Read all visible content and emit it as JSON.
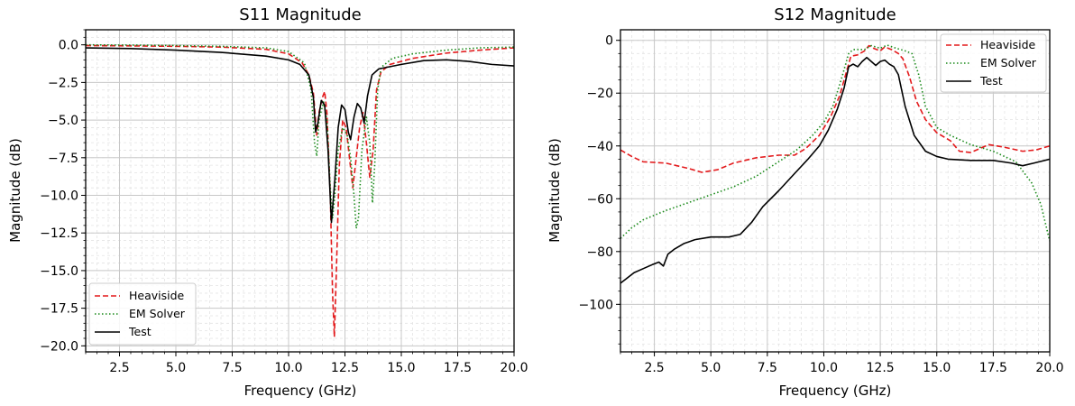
{
  "chart_data": [
    {
      "id": "s11",
      "type": "line",
      "title": "S11 Magnitude",
      "xlabel": "Frequency (GHz)",
      "ylabel": "Magnitude (dB)",
      "xlim": [
        1,
        20
      ],
      "ylim": [
        -20.4,
        1.0
      ],
      "xticks": [
        2.5,
        5.0,
        7.5,
        10.0,
        12.5,
        15.0,
        17.5,
        20.0
      ],
      "xtick_labels": [
        "2.5",
        "5.0",
        "7.5",
        "10.0",
        "12.5",
        "15.0",
        "17.5",
        "20.0"
      ],
      "yticks": [
        0,
        -2.5,
        -5.0,
        -7.5,
        -10.0,
        -12.5,
        -15.0,
        -17.5,
        -20.0
      ],
      "ytick_labels": [
        "0.0",
        "−2.5",
        "−5.0",
        "−7.5",
        "−10.0",
        "−12.5",
        "−15.0",
        "−17.5",
        "−20.0"
      ],
      "grid": true,
      "legend_position": "lower-left",
      "series": [
        {
          "name": "Heaviside",
          "color": "#e31a1c",
          "dash": "dashed",
          "points": [
            [
              1,
              -0.05
            ],
            [
              3,
              -0.07
            ],
            [
              5,
              -0.1
            ],
            [
              7,
              -0.15
            ],
            [
              9,
              -0.3
            ],
            [
              10,
              -0.6
            ],
            [
              10.6,
              -1.2
            ],
            [
              10.9,
              -2.0
            ],
            [
              11.1,
              -3.2
            ],
            [
              11.25,
              -6.0
            ],
            [
              11.35,
              -4.5
            ],
            [
              11.5,
              -3.5
            ],
            [
              11.6,
              -3.1
            ],
            [
              11.7,
              -4.5
            ],
            [
              11.85,
              -10.0
            ],
            [
              11.95,
              -16.5
            ],
            [
              12.03,
              -19.4
            ],
            [
              12.12,
              -15.0
            ],
            [
              12.25,
              -8.0
            ],
            [
              12.4,
              -5.0
            ],
            [
              12.55,
              -5.5
            ],
            [
              12.7,
              -7.5
            ],
            [
              12.85,
              -9.5
            ],
            [
              13.0,
              -7.5
            ],
            [
              13.15,
              -5.5
            ],
            [
              13.3,
              -4.5
            ],
            [
              13.45,
              -6.5
            ],
            [
              13.6,
              -8.8
            ],
            [
              13.75,
              -7.0
            ],
            [
              13.9,
              -3.0
            ],
            [
              14.1,
              -1.8
            ],
            [
              14.5,
              -1.3
            ],
            [
              15.5,
              -0.9
            ],
            [
              17,
              -0.55
            ],
            [
              18.5,
              -0.35
            ],
            [
              20,
              -0.2
            ]
          ]
        },
        {
          "name": "EM Solver",
          "color": "#1a8a1a",
          "dash": "dotted",
          "points": [
            [
              1,
              0.0
            ],
            [
              3,
              -0.02
            ],
            [
              5,
              -0.05
            ],
            [
              7,
              -0.1
            ],
            [
              9,
              -0.2
            ],
            [
              10,
              -0.45
            ],
            [
              10.7,
              -1.2
            ],
            [
              11.0,
              -3.0
            ],
            [
              11.15,
              -6.5
            ],
            [
              11.25,
              -7.4
            ],
            [
              11.35,
              -5.0
            ],
            [
              11.55,
              -3.8
            ],
            [
              11.7,
              -5.0
            ],
            [
              11.85,
              -9.5
            ],
            [
              11.95,
              -11.5
            ],
            [
              12.05,
              -10.0
            ],
            [
              12.2,
              -7.0
            ],
            [
              12.4,
              -5.5
            ],
            [
              12.6,
              -6.0
            ],
            [
              12.75,
              -7.5
            ],
            [
              12.9,
              -10.0
            ],
            [
              13.0,
              -12.2
            ],
            [
              13.1,
              -11.5
            ],
            [
              13.25,
              -7.0
            ],
            [
              13.45,
              -4.8
            ],
            [
              13.6,
              -6.5
            ],
            [
              13.72,
              -10.5
            ],
            [
              13.82,
              -8.0
            ],
            [
              13.95,
              -3.0
            ],
            [
              14.1,
              -1.5
            ],
            [
              14.6,
              -0.9
            ],
            [
              15.5,
              -0.6
            ],
            [
              17,
              -0.35
            ],
            [
              18.5,
              -0.2
            ],
            [
              20,
              -0.15
            ]
          ]
        },
        {
          "name": "Test",
          "color": "#000000",
          "dash": "solid",
          "points": [
            [
              1,
              -0.2
            ],
            [
              3,
              -0.25
            ],
            [
              5,
              -0.35
            ],
            [
              7,
              -0.5
            ],
            [
              9,
              -0.75
            ],
            [
              10,
              -1.0
            ],
            [
              10.5,
              -1.3
            ],
            [
              10.9,
              -2.0
            ],
            [
              11.1,
              -3.5
            ],
            [
              11.2,
              -5.8
            ],
            [
              11.3,
              -5.2
            ],
            [
              11.45,
              -3.7
            ],
            [
              11.6,
              -4.0
            ],
            [
              11.75,
              -7.0
            ],
            [
              11.9,
              -11.8
            ],
            [
              12.05,
              -9.0
            ],
            [
              12.2,
              -5.5
            ],
            [
              12.35,
              -4.0
            ],
            [
              12.5,
              -4.3
            ],
            [
              12.65,
              -5.8
            ],
            [
              12.75,
              -6.3
            ],
            [
              12.9,
              -4.8
            ],
            [
              13.05,
              -3.9
            ],
            [
              13.2,
              -4.2
            ],
            [
              13.35,
              -5.2
            ],
            [
              13.5,
              -3.4
            ],
            [
              13.7,
              -2.0
            ],
            [
              14,
              -1.6
            ],
            [
              15,
              -1.3
            ],
            [
              16,
              -1.05
            ],
            [
              17,
              -1.0
            ],
            [
              18,
              -1.1
            ],
            [
              19,
              -1.3
            ],
            [
              20,
              -1.4
            ]
          ]
        }
      ]
    },
    {
      "id": "s12",
      "type": "line",
      "title": "S12 Magnitude",
      "xlabel": "Frequency (GHz)",
      "ylabel": "Magnitude (dB)",
      "xlim": [
        1,
        20
      ],
      "ylim": [
        -118,
        4
      ],
      "xticks": [
        2.5,
        5.0,
        7.5,
        10.0,
        12.5,
        15.0,
        17.5,
        20.0
      ],
      "xtick_labels": [
        "2.5",
        "5.0",
        "7.5",
        "10.0",
        "12.5",
        "15.0",
        "17.5",
        "20.0"
      ],
      "yticks": [
        0,
        -20,
        -40,
        -60,
        -80,
        -100
      ],
      "ytick_labels": [
        "0",
        "−20",
        "−40",
        "−60",
        "−80",
        "−100"
      ],
      "grid": true,
      "legend_position": "upper-right",
      "series": [
        {
          "name": "Heaviside",
          "color": "#e31a1c",
          "dash": "dashed",
          "points": [
            [
              1,
              -41.5
            ],
            [
              1.5,
              -44
            ],
            [
              2,
              -46
            ],
            [
              3,
              -46.5
            ],
            [
              4,
              -48.5
            ],
            [
              4.6,
              -50
            ],
            [
              5.3,
              -49
            ],
            [
              6,
              -46.5
            ],
            [
              7,
              -44.5
            ],
            [
              8,
              -43.5
            ],
            [
              8.7,
              -43.5
            ],
            [
              9.2,
              -41
            ],
            [
              9.8,
              -36
            ],
            [
              10.3,
              -29
            ],
            [
              10.7,
              -21
            ],
            [
              11,
              -12
            ],
            [
              11.2,
              -6
            ],
            [
              11.5,
              -5.5
            ],
            [
              11.8,
              -4
            ],
            [
              12.0,
              -2
            ],
            [
              12.2,
              -3
            ],
            [
              12.5,
              -4
            ],
            [
              12.7,
              -2.5
            ],
            [
              13.0,
              -3.5
            ],
            [
              13.3,
              -5
            ],
            [
              13.5,
              -7
            ],
            [
              13.8,
              -14
            ],
            [
              14.1,
              -23
            ],
            [
              14.5,
              -30
            ],
            [
              15,
              -35
            ],
            [
              15.6,
              -38
            ],
            [
              16,
              -42
            ],
            [
              16.5,
              -42.5
            ],
            [
              17.3,
              -39.5
            ],
            [
              18,
              -40.5
            ],
            [
              18.8,
              -42
            ],
            [
              19.4,
              -41.5
            ],
            [
              20,
              -40
            ]
          ]
        },
        {
          "name": "EM Solver",
          "color": "#1a8a1a",
          "dash": "dotted",
          "points": [
            [
              1,
              -75
            ],
            [
              1.5,
              -71
            ],
            [
              2,
              -68
            ],
            [
              3,
              -64.5
            ],
            [
              4,
              -61.5
            ],
            [
              5,
              -58.5
            ],
            [
              6,
              -55.5
            ],
            [
              7,
              -51.5
            ],
            [
              8,
              -46
            ],
            [
              8.8,
              -41.5
            ],
            [
              9.5,
              -36
            ],
            [
              10,
              -31
            ],
            [
              10.4,
              -25
            ],
            [
              10.8,
              -14
            ],
            [
              11.1,
              -5
            ],
            [
              11.3,
              -3.5
            ],
            [
              11.8,
              -3.5
            ],
            [
              12.1,
              -2.0
            ],
            [
              12.5,
              -3.0
            ],
            [
              12.8,
              -1.8
            ],
            [
              13.2,
              -3
            ],
            [
              13.6,
              -4
            ],
            [
              13.9,
              -5
            ],
            [
              14.2,
              -13
            ],
            [
              14.5,
              -25
            ],
            [
              15,
              -33
            ],
            [
              15.6,
              -36
            ],
            [
              16.5,
              -39.5
            ],
            [
              17.5,
              -42
            ],
            [
              18.5,
              -46
            ],
            [
              19.2,
              -54
            ],
            [
              19.6,
              -62
            ],
            [
              20,
              -76
            ]
          ]
        },
        {
          "name": "Test",
          "color": "#000000",
          "dash": "solid",
          "points": [
            [
              1,
              -92
            ],
            [
              1.3,
              -90
            ],
            [
              1.6,
              -88
            ],
            [
              2,
              -86.5
            ],
            [
              2.4,
              -85
            ],
            [
              2.7,
              -84
            ],
            [
              2.9,
              -85.5
            ],
            [
              3.1,
              -81
            ],
            [
              3.4,
              -79
            ],
            [
              3.8,
              -77
            ],
            [
              4.3,
              -75.5
            ],
            [
              5,
              -74.5
            ],
            [
              5.8,
              -74.5
            ],
            [
              6.3,
              -73.5
            ],
            [
              6.8,
              -69
            ],
            [
              7.3,
              -63
            ],
            [
              8,
              -57
            ],
            [
              8.7,
              -50.5
            ],
            [
              9.3,
              -45
            ],
            [
              9.8,
              -40
            ],
            [
              10.2,
              -34
            ],
            [
              10.6,
              -26
            ],
            [
              10.9,
              -18
            ],
            [
              11.1,
              -10
            ],
            [
              11.3,
              -9
            ],
            [
              11.5,
              -10
            ],
            [
              11.7,
              -8
            ],
            [
              11.9,
              -6.5
            ],
            [
              12.1,
              -8
            ],
            [
              12.3,
              -9.5
            ],
            [
              12.5,
              -8
            ],
            [
              12.7,
              -7.5
            ],
            [
              12.9,
              -9
            ],
            [
              13.1,
              -10
            ],
            [
              13.3,
              -13
            ],
            [
              13.6,
              -25
            ],
            [
              14,
              -36
            ],
            [
              14.5,
              -42
            ],
            [
              15,
              -44
            ],
            [
              15.5,
              -45
            ],
            [
              16.5,
              -45.5
            ],
            [
              17.5,
              -45.5
            ],
            [
              18.3,
              -46.5
            ],
            [
              18.8,
              -47.5
            ],
            [
              19.3,
              -46.5
            ],
            [
              20,
              -45
            ]
          ]
        }
      ]
    }
  ]
}
